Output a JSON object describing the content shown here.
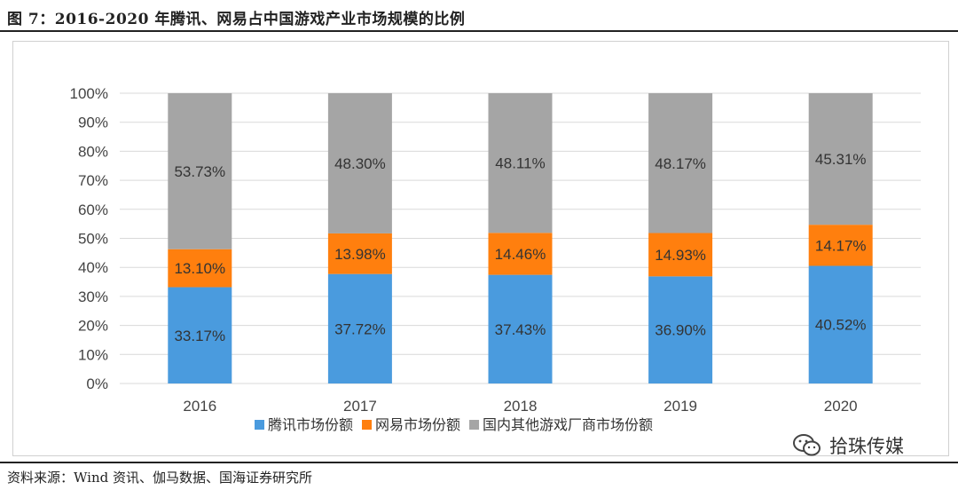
{
  "header": {
    "title": "图 7：2016-2020 年腾讯、网易占中国游戏产业市场规模的比例"
  },
  "source": {
    "text": "资料来源：Wind 资讯、伽马数据、国海证券研究所"
  },
  "watermark": {
    "text": "拾珠传媒",
    "icon": "wechat-icon"
  },
  "colors": {
    "tencent": "#4A9BDE",
    "netease": "#FF7F0E",
    "other": "#A5A5A5",
    "grid": "#D9D9D9"
  },
  "chart_data": {
    "type": "bar",
    "stacked": true,
    "categories": [
      "2016",
      "2017",
      "2018",
      "2019",
      "2020"
    ],
    "series": [
      {
        "name": "腾讯市场份额",
        "values": [
          33.17,
          37.72,
          37.43,
          36.9,
          40.52
        ],
        "labels": [
          "33.17%",
          "37.72%",
          "37.43%",
          "36.90%",
          "40.52%"
        ]
      },
      {
        "name": "网易市场份额",
        "values": [
          13.1,
          13.98,
          14.46,
          14.93,
          14.17
        ],
        "labels": [
          "13.10%",
          "13.98%",
          "14.46%",
          "14.93%",
          "14.17%"
        ]
      },
      {
        "name": "国内其他游戏厂商市场份额",
        "values": [
          53.73,
          48.3,
          48.11,
          48.17,
          45.31
        ],
        "labels": [
          "53.73%",
          "48.30%",
          "48.11%",
          "48.17%",
          "45.31%"
        ]
      }
    ],
    "ylim": [
      0,
      100
    ],
    "yticks": [
      "0%",
      "10%",
      "20%",
      "30%",
      "40%",
      "50%",
      "60%",
      "70%",
      "80%",
      "90%",
      "100%"
    ],
    "grid": true,
    "legend": "bottom"
  }
}
